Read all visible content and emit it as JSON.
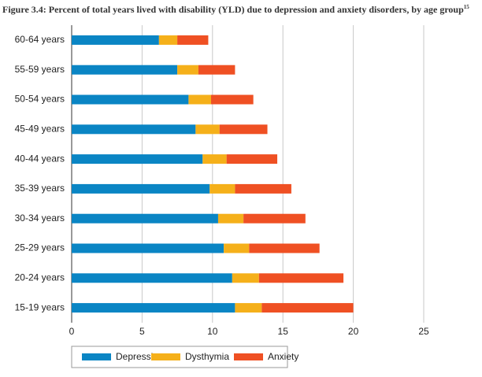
{
  "chart_data": {
    "type": "bar",
    "orientation": "horizontal",
    "stacked": true,
    "title": "Figure 3.4: Percent of total years lived with disability (YLD) due to depression and anxiety disorders, by age group",
    "title_superscript": "15",
    "categories": [
      "60-64 years",
      "55-59 years",
      "50-54 years",
      "45-49 years",
      "40-44 years",
      "35-39 years",
      "30-34 years",
      "25-29 years",
      "20-24 years",
      "15-19 years"
    ],
    "series": [
      {
        "name": "Depression",
        "color": "#0a85c4",
        "values": [
          6.2,
          7.5,
          8.3,
          8.8,
          9.3,
          9.8,
          10.4,
          10.8,
          11.4,
          11.6
        ]
      },
      {
        "name": "Dysthymia",
        "color": "#f5b01a",
        "values": [
          1.3,
          1.5,
          1.6,
          1.7,
          1.7,
          1.8,
          1.8,
          1.8,
          1.9,
          1.9
        ]
      },
      {
        "name": "Anxiety",
        "color": "#ef5023",
        "values": [
          2.2,
          2.6,
          3.0,
          3.4,
          3.6,
          4.0,
          4.4,
          5.0,
          6.0,
          6.5
        ]
      }
    ],
    "xlim": [
      0,
      25
    ],
    "xticks": [
      0,
      5,
      10,
      15,
      20,
      25
    ],
    "grid": true
  }
}
